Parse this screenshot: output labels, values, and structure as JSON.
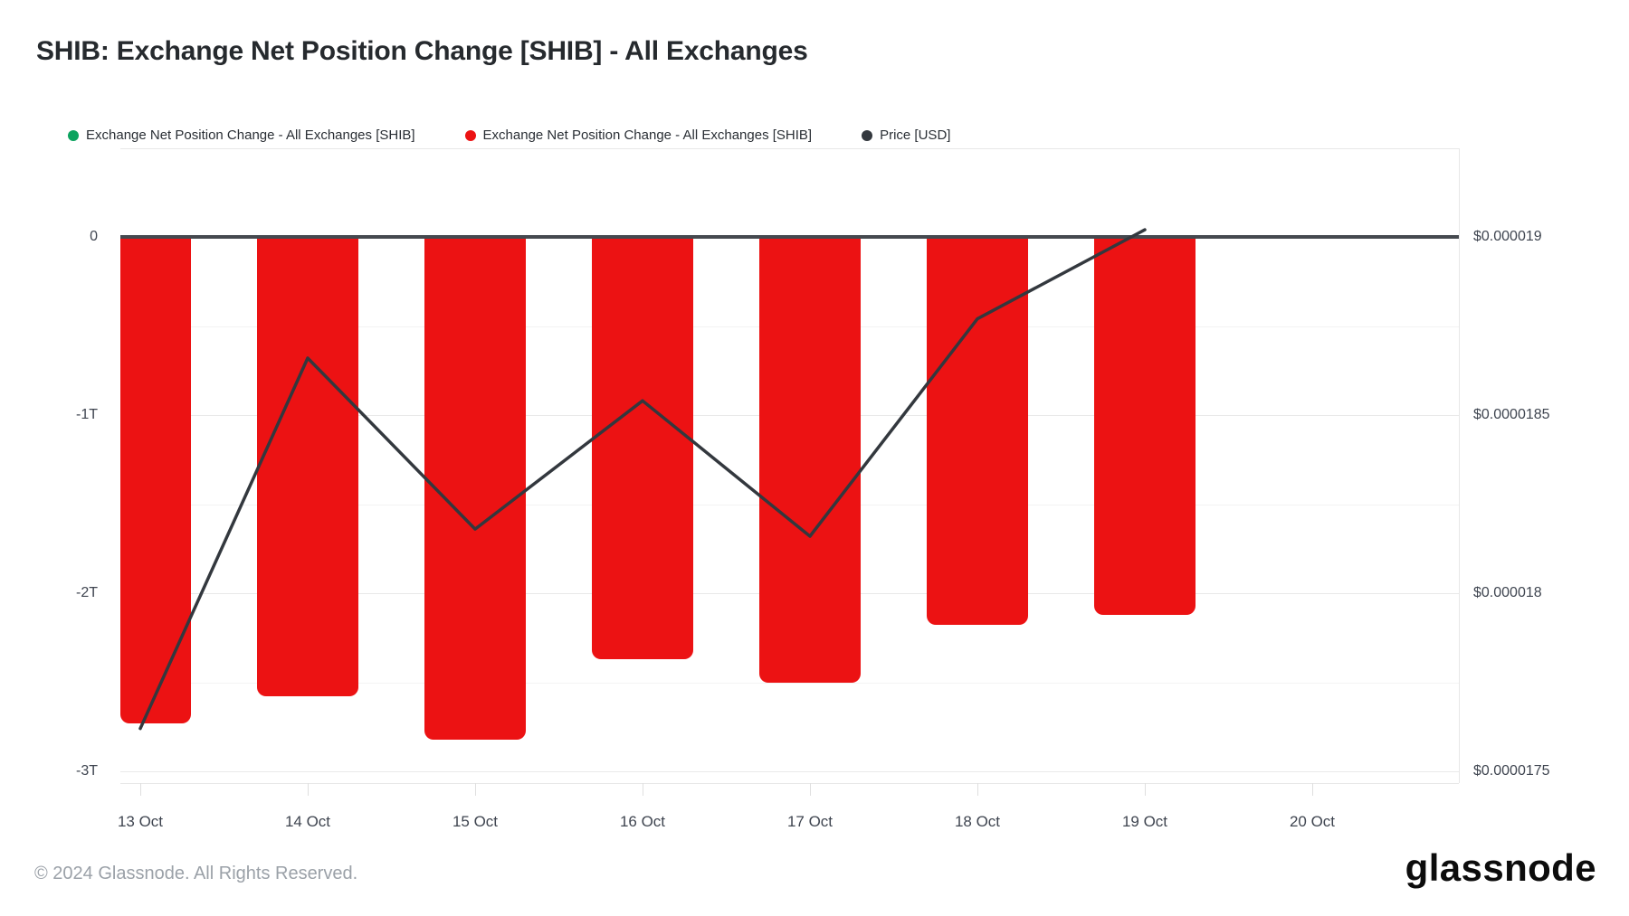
{
  "page": {
    "title": "SHIB: Exchange Net Position Change [SHIB] - All Exchanges",
    "footer_copyright": "© 2024 Glassnode. All Rights Reserved.",
    "brand_wordmark": "glassnode"
  },
  "legend": {
    "items": [
      {
        "label": "Exchange Net Position Change - All Exchanges [SHIB]",
        "color": "#0ca35f",
        "icon": "green-dot"
      },
      {
        "label": "Exchange Net Position Change - All Exchanges [SHIB]",
        "color": "#ec1213",
        "icon": "red-dot"
      },
      {
        "label": "Price [USD]",
        "color": "#33383e",
        "icon": "black-dot"
      }
    ]
  },
  "chart_data": {
    "type": "bar",
    "subtype": "bar+line combo",
    "title": "SHIB: Exchange Net Position Change [SHIB] - All Exchanges",
    "categories": [
      "13 Oct",
      "14 Oct",
      "15 Oct",
      "16 Oct",
      "17 Oct",
      "18 Oct",
      "19 Oct",
      "20 Oct"
    ],
    "series": [
      {
        "name": "Exchange Net Position Change - All Exchanges [SHIB]",
        "type": "bar",
        "color": "#ec1213",
        "unit": "trillion SHIB",
        "values": [
          -2.73,
          -2.58,
          -2.82,
          -2.37,
          -2.5,
          -2.18,
          -2.12,
          null
        ]
      },
      {
        "name": "Price [USD]",
        "type": "line",
        "color": "#33383e",
        "unit": "USD",
        "values": [
          1.762e-05,
          1.866e-05,
          1.818e-05,
          1.854e-05,
          1.816e-05,
          1.877e-05,
          1.902e-05,
          null
        ]
      }
    ],
    "left_axis": {
      "ticks": [
        "0",
        "-1T",
        "-2T",
        "-3T"
      ],
      "range_trillions": [
        0,
        -3
      ]
    },
    "right_axis": {
      "ticks": [
        "$0.000019",
        "$0.0000185",
        "$0.000018",
        "$0.0000175"
      ],
      "range": [
        1.9e-05,
        1.75e-05
      ]
    },
    "grid": true,
    "legend_position": "top"
  }
}
